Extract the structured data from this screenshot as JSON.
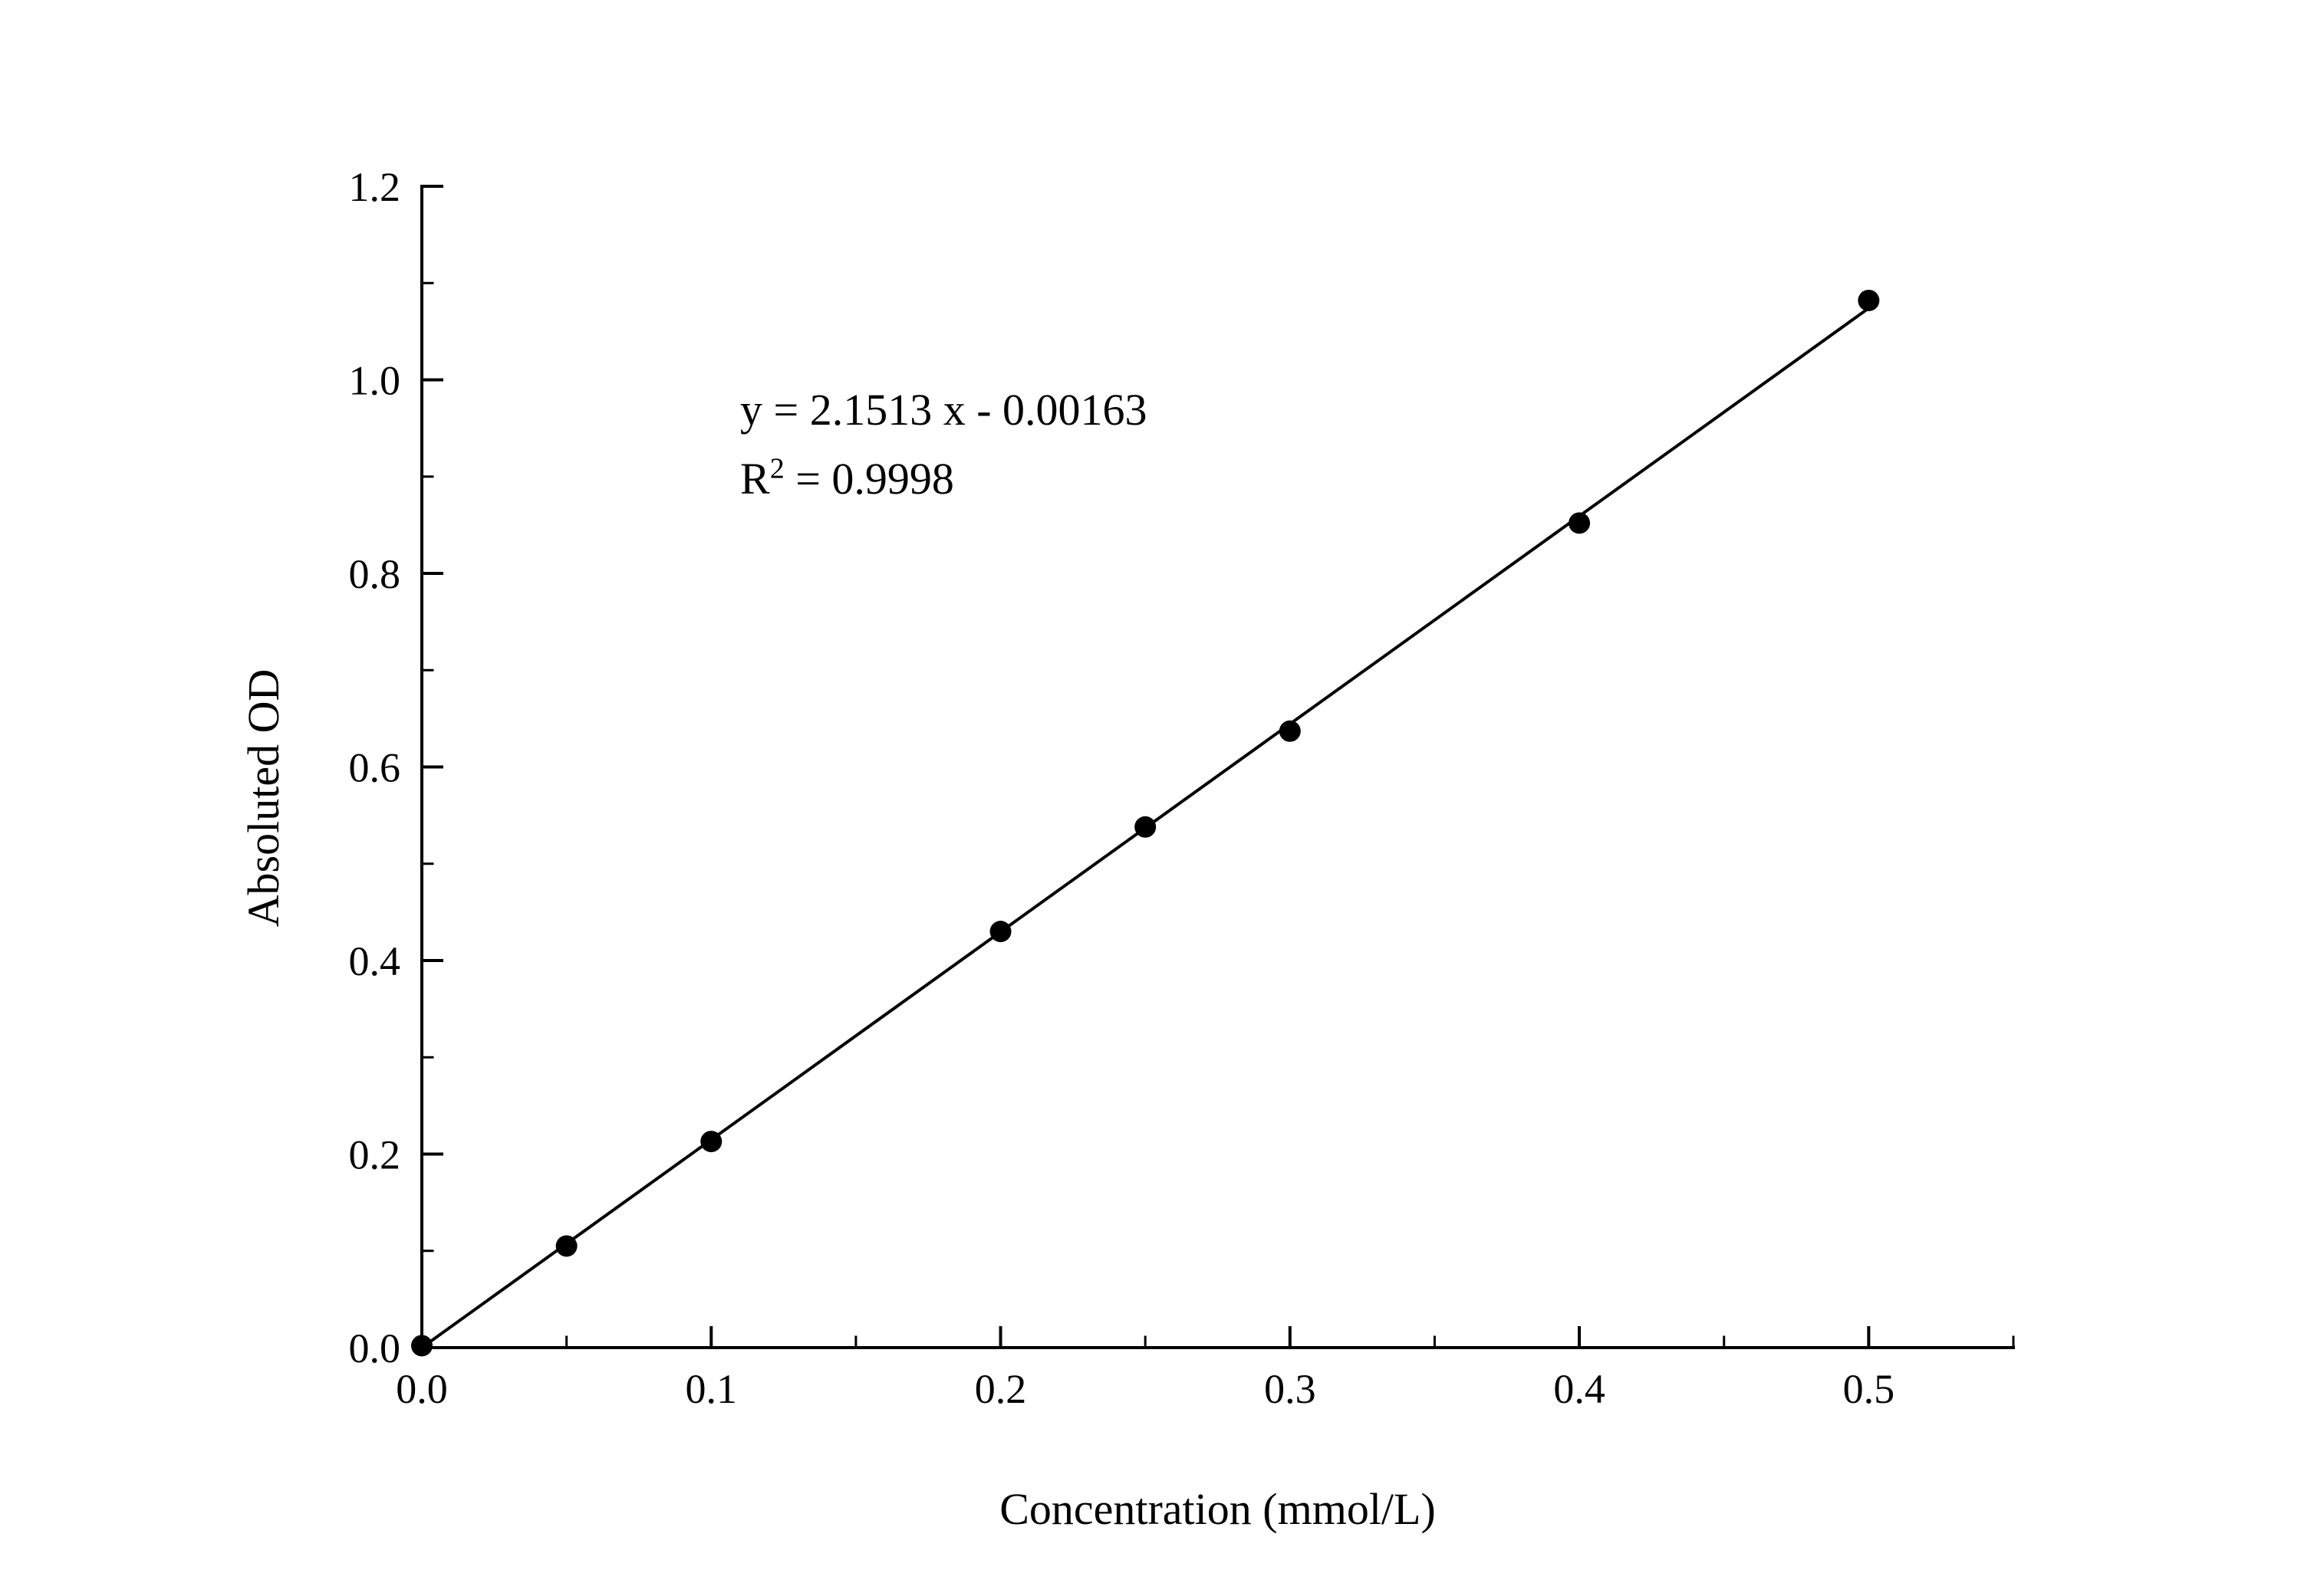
{
  "chart_data": {
    "type": "scatter",
    "title": "",
    "xlabel": "Concentration (mmol/L)",
    "ylabel": "Absoluted OD",
    "x": [
      0.0,
      0.05,
      0.1,
      0.2,
      0.25,
      0.3,
      0.4,
      0.5
    ],
    "y": [
      0.002,
      0.105,
      0.213,
      0.43,
      0.538,
      0.637,
      0.852,
      1.082
    ],
    "fit_line": {
      "slope": 2.1513,
      "intercept": -0.00163,
      "x_start": 0.0,
      "x_end": 0.5
    },
    "xlim": [
      0.0,
      0.55
    ],
    "ylim": [
      0.0,
      1.2
    ],
    "x_major_ticks": [
      0.0,
      0.1,
      0.2,
      0.3,
      0.4,
      0.5
    ],
    "x_tick_labels": [
      "0.0",
      "0.1",
      "0.2",
      "0.3",
      "0.4",
      "0.5"
    ],
    "x_minor_step": 0.05,
    "y_major_ticks": [
      0.0,
      0.2,
      0.4,
      0.6,
      0.8,
      1.0,
      1.2
    ],
    "y_tick_labels": [
      "0.0",
      "0.2",
      "0.4",
      "0.6",
      "0.8",
      "1.0",
      "1.2"
    ],
    "y_minor_step": 0.1,
    "grid": false,
    "legend_position": "none",
    "marker_color": "#000000",
    "line_color": "#000000",
    "axis_color": "#000000",
    "annotation": {
      "equation": "y = 2.1513 x - 0.00163",
      "r_label_base": "R",
      "r_label_sup": "2",
      "r_label_rest": " = 0.9998"
    }
  }
}
